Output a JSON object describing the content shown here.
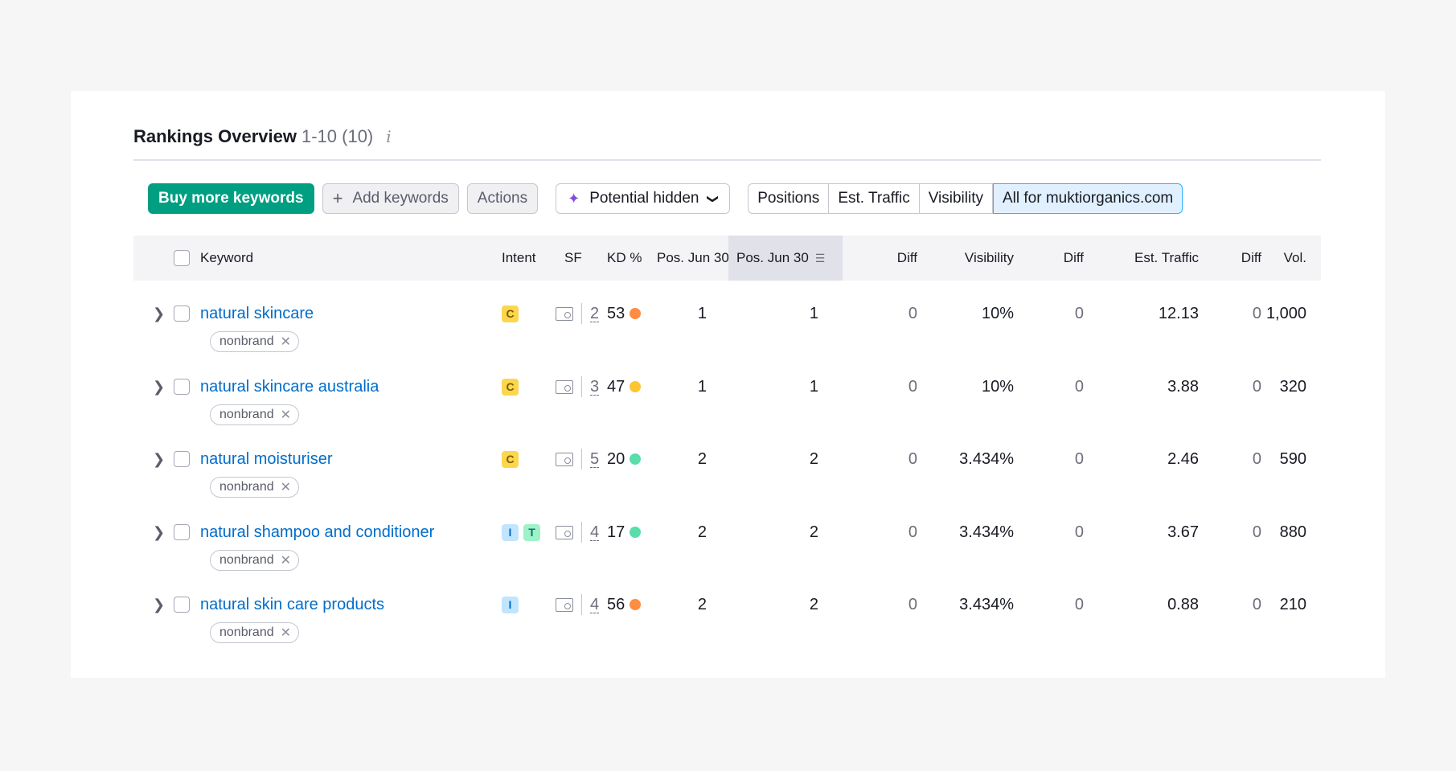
{
  "header": {
    "title": "Rankings Overview",
    "range": "1-10 (10)",
    "info_icon": "i"
  },
  "toolbar": {
    "buy_label": "Buy more keywords",
    "add_label": "Add keywords",
    "add_icon": "+",
    "actions_label": "Actions",
    "potential_label": "Potential hidden",
    "segments": [
      "Positions",
      "Est. Traffic",
      "Visibility",
      "All for muktiorganics.com"
    ],
    "active_segment": "All for muktiorganics.com"
  },
  "columns": {
    "keyword": "Keyword",
    "intent": "Intent",
    "sf": "SF",
    "kd": "KD %",
    "pos1": "Pos. Jun 30",
    "pos2": "Pos. Jun 30",
    "diff": "Diff",
    "visibility": "Visibility",
    "est_traffic": "Est. Traffic",
    "vol": "Vol."
  },
  "rows": [
    {
      "keyword": "natural skincare",
      "tag": "nonbrand",
      "intents": [
        "C"
      ],
      "sf": "2",
      "kd": "53",
      "kd_color": "#ff8c43",
      "pos1": "1",
      "pos2": "1",
      "diff1": "0",
      "visibility": "10%",
      "diff2": "0",
      "traffic": "12.13",
      "diff3": "0",
      "vol": "1,000"
    },
    {
      "keyword": "natural skincare australia",
      "tag": "nonbrand",
      "intents": [
        "C"
      ],
      "sf": "3",
      "kd": "47",
      "kd_color": "#fcc531",
      "pos1": "1",
      "pos2": "1",
      "diff1": "0",
      "visibility": "10%",
      "diff2": "0",
      "traffic": "3.88",
      "diff3": "0",
      "vol": "320"
    },
    {
      "keyword": "natural moisturiser",
      "tag": "nonbrand",
      "intents": [
        "C"
      ],
      "sf": "5",
      "kd": "20",
      "kd_color": "#59ddaa",
      "pos1": "2",
      "pos2": "2",
      "diff1": "0",
      "visibility": "3.434%",
      "diff2": "0",
      "traffic": "2.46",
      "diff3": "0",
      "vol": "590"
    },
    {
      "keyword": "natural shampoo and conditioner",
      "tag": "nonbrand",
      "intents": [
        "I",
        "T"
      ],
      "sf": "4",
      "kd": "17",
      "kd_color": "#59ddaa",
      "pos1": "2",
      "pos2": "2",
      "diff1": "0",
      "visibility": "3.434%",
      "diff2": "0",
      "traffic": "3.67",
      "diff3": "0",
      "vol": "880"
    },
    {
      "keyword": "natural skin care products",
      "tag": "nonbrand",
      "intents": [
        "I"
      ],
      "sf": "4",
      "kd": "56",
      "kd_color": "#ff8c43",
      "pos1": "2",
      "pos2": "2",
      "diff1": "0",
      "visibility": "3.434%",
      "diff2": "0",
      "traffic": "0.88",
      "diff3": "0",
      "vol": "210"
    }
  ],
  "icons": {
    "expand": "chevron-right-icon",
    "sort": "sort-icon",
    "remove": "close-icon",
    "serp": "serp-features-icon",
    "sparkle": "sparkle-icon"
  },
  "colors": {
    "primary": "#009f81",
    "link": "#006dca",
    "active_segment_bg": "#e0f0ff"
  }
}
